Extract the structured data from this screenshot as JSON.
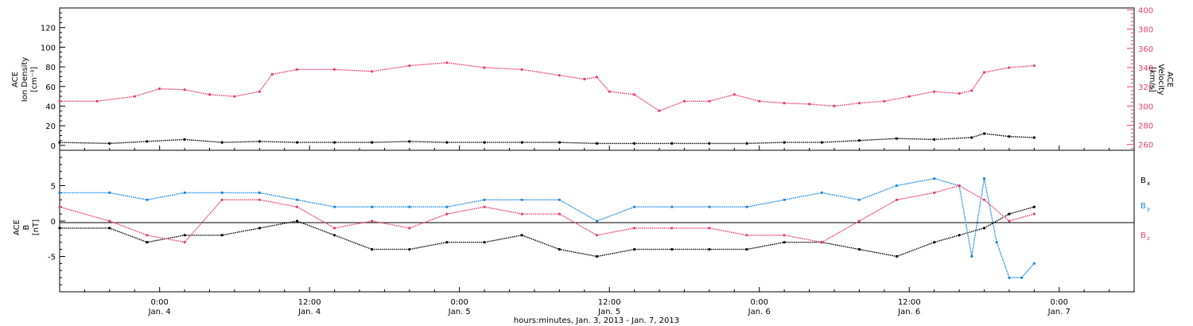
{
  "chart_data": [
    {
      "type": "scatter",
      "panel": "top",
      "ylabel_left": [
        "ACE",
        "Ion Density",
        "[cm⁻³]"
      ],
      "ylabel_right": [
        "ACE",
        "Velocity",
        "[km/s]"
      ],
      "left_axis": {
        "ylim": [
          -5,
          140
        ],
        "ticks": [
          0,
          20,
          40,
          60,
          80,
          100,
          120
        ]
      },
      "right_axis": {
        "ylim": [
          254,
          402
        ],
        "ticks": [
          260,
          280,
          300,
          320,
          340,
          360,
          380,
          400
        ]
      },
      "xlim_hours": [
        -8,
        78
      ],
      "series": [
        {
          "name": "Ion Density",
          "axis": "left",
          "color": "#000000",
          "x_hours": [
            -8,
            -4,
            -1,
            2,
            5,
            8,
            11,
            14,
            17,
            20,
            23,
            26,
            29,
            32,
            35,
            38,
            41,
            44,
            47,
            50,
            53,
            56,
            59,
            62,
            65,
            66,
            68,
            70
          ],
          "values": [
            3,
            2,
            4,
            6,
            3,
            4,
            3,
            3,
            3,
            4,
            3,
            3,
            3,
            3,
            2,
            2,
            2,
            2,
            2,
            3,
            3,
            5,
            7,
            6,
            8,
            12,
            9,
            8
          ]
        },
        {
          "name": "Velocity",
          "axis": "right",
          "color": "#e83e6c",
          "x_hours": [
            -8,
            -5,
            -2,
            0,
            2,
            4,
            6,
            8,
            9,
            11,
            14,
            17,
            20,
            23,
            26,
            29,
            32,
            34,
            35,
            36,
            38,
            40,
            42,
            44,
            46,
            48,
            50,
            52,
            54,
            56,
            58,
            60,
            62,
            64,
            65,
            66,
            68,
            70
          ],
          "values": [
            305,
            305,
            310,
            318,
            317,
            312,
            310,
            315,
            333,
            338,
            338,
            336,
            342,
            345,
            340,
            338,
            332,
            328,
            330,
            315,
            312,
            295,
            305,
            305,
            312,
            305,
            303,
            302,
            300,
            303,
            305,
            310,
            315,
            313,
            316,
            335,
            340,
            342
          ]
        }
      ]
    },
    {
      "type": "scatter",
      "panel": "bottom",
      "ylabel_left": [
        "ACE",
        "B",
        "[nT]"
      ],
      "ylim": [
        -10,
        10
      ],
      "ticks": [
        -5,
        0,
        5
      ],
      "xlim_hours": [
        -8,
        78
      ],
      "series": [
        {
          "name": "Bx",
          "color": "#000000",
          "x_hours": [
            -8,
            -4,
            -1,
            2,
            5,
            8,
            11,
            14,
            17,
            20,
            23,
            26,
            29,
            32,
            35,
            38,
            41,
            44,
            47,
            50,
            53,
            56,
            59,
            62,
            64,
            66,
            68,
            70
          ],
          "values": [
            -1,
            -1,
            -3,
            -2,
            -2,
            -1,
            0,
            -2,
            -4,
            -4,
            -3,
            -3,
            -2,
            -4,
            -5,
            -4,
            -4,
            -4,
            -4,
            -3,
            -3,
            -4,
            -5,
            -3,
            -2,
            -1,
            1,
            2
          ]
        },
        {
          "name": "By",
          "color": "#1a86e0",
          "x_hours": [
            -8,
            -4,
            -1,
            2,
            5,
            8,
            11,
            14,
            17,
            20,
            23,
            26,
            29,
            32,
            35,
            38,
            41,
            44,
            47,
            50,
            53,
            56,
            59,
            62,
            64,
            65,
            66,
            67,
            68,
            69,
            70
          ],
          "values": [
            4,
            4,
            3,
            4,
            4,
            4,
            3,
            2,
            2,
            2,
            2,
            3,
            3,
            3,
            0,
            2,
            2,
            2,
            2,
            3,
            4,
            3,
            5,
            6,
            5,
            -5,
            6,
            -3,
            -8,
            -8,
            -6
          ]
        },
        {
          "name": "Bz",
          "color": "#e83e6c",
          "x_hours": [
            -8,
            -4,
            -1,
            2,
            5,
            8,
            11,
            14,
            17,
            20,
            23,
            26,
            29,
            32,
            35,
            38,
            41,
            44,
            47,
            50,
            53,
            56,
            59,
            62,
            64,
            66,
            68,
            70
          ],
          "values": [
            2,
            0,
            -2,
            -3,
            3,
            3,
            2,
            -1,
            0,
            -1,
            1,
            2,
            1,
            1,
            -2,
            -1,
            -1,
            -1,
            -2,
            -2,
            -3,
            0,
            3,
            4,
            5,
            3,
            0,
            1
          ]
        }
      ],
      "legend": [
        "B",
        "B",
        "B"
      ],
      "legend_subscripts": [
        "x",
        "y",
        "z"
      ]
    }
  ],
  "x_axis": {
    "ticks": [
      {
        "time": "0:00",
        "date": "Jan. 4",
        "hours": 0
      },
      {
        "time": "12:00",
        "date": "Jan. 4",
        "hours": 12
      },
      {
        "time": "0:00",
        "date": "Jan. 5",
        "hours": 24
      },
      {
        "time": "12:00",
        "date": "Jan. 5",
        "hours": 36
      },
      {
        "time": "0:00",
        "date": "Jan. 6",
        "hours": 48
      },
      {
        "time": "12:00",
        "date": "Jan. 6",
        "hours": 60
      },
      {
        "time": "0:00",
        "date": "Jan. 7",
        "hours": 72
      }
    ],
    "label": "hours:minutes, Jan.  3, 2013 - Jan.  7, 2013"
  },
  "colors": {
    "black": "#000000",
    "blue": "#1a86e0",
    "pink": "#e83e6c"
  }
}
